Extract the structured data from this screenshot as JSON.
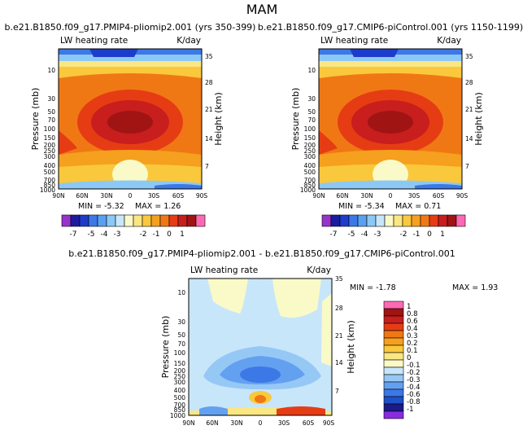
{
  "figure_title": "MAM",
  "colors": {
    "plev": [
      "#9932cc",
      "#1c1c9e",
      "#1e3ccc",
      "#3c78e6",
      "#5aa0f0",
      "#8cc8f5",
      "#c8e6fa",
      "#fafac8",
      "#fae682",
      "#fac83c",
      "#f5a01e",
      "#f07814",
      "#e63c14",
      "#c81e1e",
      "#a01414",
      "#ff69b4"
    ],
    "diff": [
      "#8a2be2",
      "#1a1a8a",
      "#1e50c8",
      "#3c78e6",
      "#64a0f0",
      "#96c8f5",
      "#c8e6fa",
      "#fafac8",
      "#fae682",
      "#fac83c",
      "#f5a01e",
      "#f07814",
      "#e63c14",
      "#c81e1e",
      "#a01414",
      "#ff69b4"
    ]
  },
  "chart_data": [
    {
      "type": "heatmap",
      "title": "b.e21.B1850.f09_g17.PMIP4-pliomip2.001 (yrs 350-399)",
      "left_label": "LW heating rate",
      "right_label": "K/day",
      "ylabel": "Pressure (mb)",
      "ylabel_right": "Height (km)",
      "x_ticks": [
        "90N",
        "60N",
        "30N",
        "0",
        "30S",
        "60S",
        "90S"
      ],
      "y_ticks": [
        "10",
        "30",
        "50",
        "70",
        "100",
        "150",
        "200",
        "250",
        "300",
        "400",
        "500",
        "700",
        "850",
        "1000"
      ],
      "y_ticks_right": [
        "35",
        "28",
        "21",
        "14",
        "7"
      ],
      "min_label": "MIN = -5.32",
      "max_label": "MAX = 1.26",
      "min": -5.32,
      "max": 1.26,
      "colorbar_levels": [
        -7,
        -6,
        -5,
        -4,
        -3,
        -2.5,
        -2,
        -1.5,
        -1,
        -0.5,
        0,
        0.5,
        1,
        1.5
      ],
      "colorbar_tick_labels": [
        "-7",
        "-5",
        "-4",
        "-3",
        "-2",
        "-1",
        "0",
        "1"
      ]
    },
    {
      "type": "heatmap",
      "title": "b.e21.B1850.f09_g17.CMIP6-piControl.001 (yrs 1150-1199)",
      "left_label": "LW heating rate",
      "right_label": "K/day",
      "ylabel": "Pressure (mb)",
      "ylabel_right": "Height (km)",
      "x_ticks": [
        "90N",
        "60N",
        "30N",
        "0",
        "30S",
        "60S",
        "90S"
      ],
      "y_ticks": [
        "10",
        "30",
        "50",
        "70",
        "100",
        "150",
        "200",
        "250",
        "300",
        "400",
        "500",
        "700",
        "850",
        "1000"
      ],
      "y_ticks_right": [
        "35",
        "28",
        "21",
        "14",
        "7"
      ],
      "min_label": "MIN = -5.34",
      "max_label": "MAX = 0.71",
      "min": -5.34,
      "max": 0.71,
      "colorbar_levels": [
        -7,
        -6,
        -5,
        -4,
        -3,
        -2.5,
        -2,
        -1.5,
        -1,
        -0.5,
        0,
        0.5,
        1,
        1.5
      ],
      "colorbar_tick_labels": [
        "-7",
        "-5",
        "-4",
        "-3",
        "-2",
        "-1",
        "0",
        "1"
      ]
    },
    {
      "type": "heatmap",
      "title": "b.e21.B1850.f09_g17.PMIP4-pliomip2.001 - b.e21.B1850.f09_g17.CMIP6-piControl.001",
      "left_label": "LW heating rate",
      "right_label": "K/day",
      "ylabel": "Pressure (mb)",
      "ylabel_right": "Height (km)",
      "x_ticks": [
        "90N",
        "60N",
        "30N",
        "0",
        "30S",
        "60S",
        "90S"
      ],
      "y_ticks": [
        "10",
        "30",
        "50",
        "70",
        "100",
        "150",
        "200",
        "250",
        "300",
        "400",
        "500",
        "700",
        "850",
        "1000"
      ],
      "y_ticks_right": [
        "35",
        "28",
        "21",
        "14",
        "7"
      ],
      "min_label": "MIN = -1.78",
      "max_label": "MAX = 1.93",
      "min": -1.78,
      "max": 1.93,
      "colorbar_levels": [
        -1,
        -0.8,
        -0.6,
        -0.4,
        -0.3,
        -0.2,
        -0.1,
        0,
        0.1,
        0.2,
        0.3,
        0.4,
        0.6,
        0.8,
        1
      ],
      "colorbar_tick_labels": [
        "1",
        "0.8",
        "0.6",
        "0.4",
        "0.3",
        "0.2",
        "0.1",
        "0",
        "-0.1",
        "-0.2",
        "-0.3",
        "-0.4",
        "-0.6",
        "-0.8",
        "-1"
      ]
    }
  ]
}
